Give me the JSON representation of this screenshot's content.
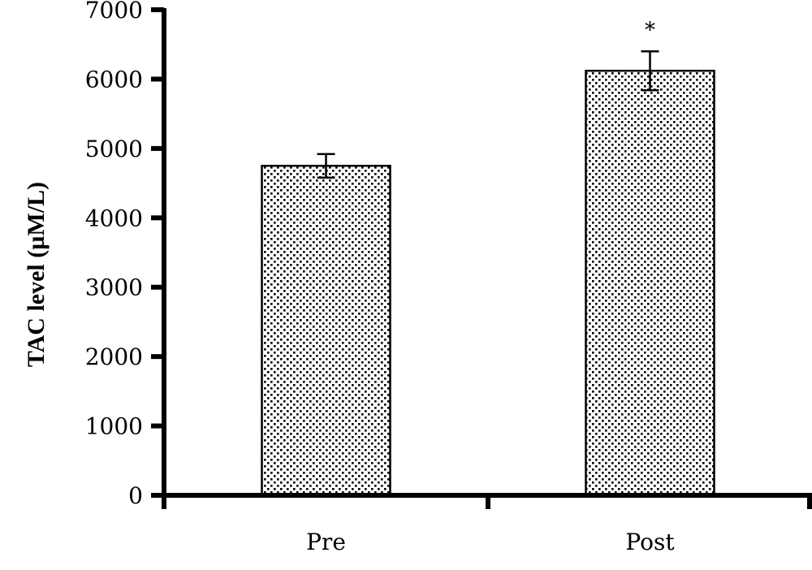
{
  "chart_data": {
    "type": "bar",
    "categories": [
      "Pre",
      "Post"
    ],
    "values": [
      4750,
      6120
    ],
    "errors": [
      170,
      280
    ],
    "annotations": [
      "",
      "*"
    ],
    "title": "",
    "xlabel": "",
    "ylabel": "TAC level (µM/L)",
    "ylim": [
      0,
      7000
    ],
    "yticks": [
      0,
      1000,
      2000,
      3000,
      4000,
      5000,
      6000,
      7000
    ],
    "grid": false,
    "bar_fill": "dotted pattern",
    "colors": {
      "bar_edge": "#000000",
      "dot": "#000000",
      "axis": "#000000"
    }
  }
}
